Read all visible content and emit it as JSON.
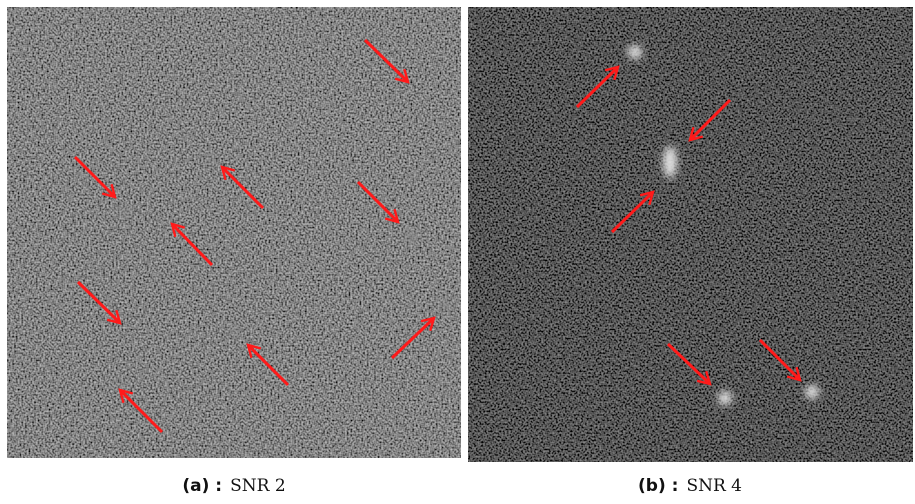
{
  "panels": [
    {
      "label": "(a) :",
      "caption": "SNR 2"
    },
    {
      "label": "(b) :",
      "caption": "SNR 4"
    }
  ]
}
